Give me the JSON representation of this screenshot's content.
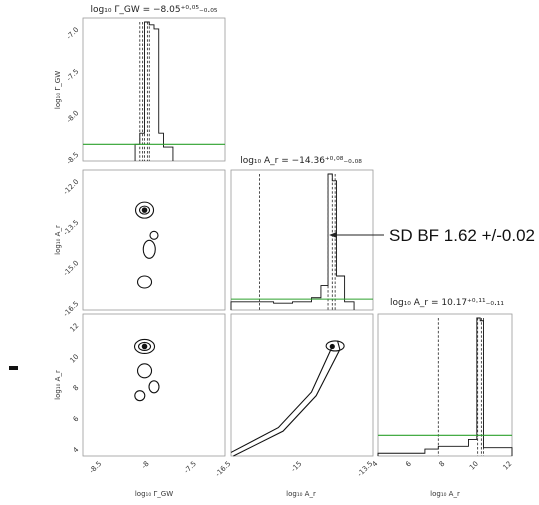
{
  "chart_data": {
    "type": "corner",
    "parameters": [
      {
        "id": "gw",
        "axis_label": "log₁₀ Γ_GW",
        "title": "log₁₀ Γ_GW = −8.05⁺⁰·⁰⁵₋₀.₀₅",
        "range": [
          -8.7,
          -7.2
        ],
        "ticks": [
          -8.5,
          -8.0,
          -7.5,
          -7.0
        ],
        "median": -8.05
      },
      {
        "id": "ar",
        "axis_label": "log₁₀ A_r",
        "title": "log₁₀ A_r = −14.36⁺⁰·⁰⁸₋₀.₀₈",
        "range": [
          -16.5,
          -13.5
        ],
        "ticks": [
          -16.5,
          -15.0,
          -13.5,
          -12.0
        ],
        "median": -14.36
      },
      {
        "id": "ar_gamma",
        "axis_label": "log₁₀ A_r",
        "title": "log₁₀ A_r = 10.17⁺⁰·¹¹₋₀.₁₁",
        "range": [
          4,
          12
        ],
        "ticks": [
          4,
          6,
          8,
          10,
          12
        ],
        "median": 10.17
      }
    ],
    "diag_ytick_labels": {
      "gw": [
        "-7.0",
        "-7.5",
        "-8.0",
        "-8.5"
      ],
      "ar": [
        "-12.0",
        "-13.5",
        "-15.0",
        "-16.5"
      ],
      "ar_gamma": [
        "12",
        "10",
        "8",
        "6",
        "4"
      ]
    },
    "histograms": [
      {
        "param": "gw",
        "bins": [
          -8.15,
          -8.1,
          -8.05,
          -8.0,
          -7.95,
          -7.9,
          -7.85,
          -7.75
        ],
        "counts": [
          0.12,
          0.2,
          1.0,
          0.98,
          0.95,
          0.2,
          0.1
        ],
        "quantiles": [
          -8.1,
          -8.07,
          -8.05,
          -8.02,
          -8.0
        ],
        "prior_level": 0.12
      },
      {
        "param": "ar",
        "bins": [
          -16.5,
          -15.6,
          -15.2,
          -14.8,
          -14.6,
          -14.45,
          -14.36,
          -14.27,
          -14.1,
          -13.9
        ],
        "counts": [
          0.06,
          0.05,
          0.06,
          0.09,
          0.18,
          1.0,
          0.95,
          0.25,
          0.06
        ],
        "quantiles": [
          -15.9,
          -14.45,
          -14.36,
          -14.3
        ],
        "prior_level": 0.08
      },
      {
        "param": "ar_gamma",
        "bins": [
          4.0,
          5.5,
          6.8,
          7.6,
          9.4,
          9.9,
          10.1,
          10.3,
          12.0
        ],
        "counts": [
          0.02,
          0.02,
          0.05,
          0.07,
          0.12,
          1.0,
          0.98,
          0.06
        ],
        "quantiles": [
          7.6,
          9.95,
          10.17,
          10.3
        ],
        "prior_level": 0.15
      }
    ],
    "prior_color": "#2ca02c",
    "annotation": "SD BF 1.62 +/-0.02"
  }
}
